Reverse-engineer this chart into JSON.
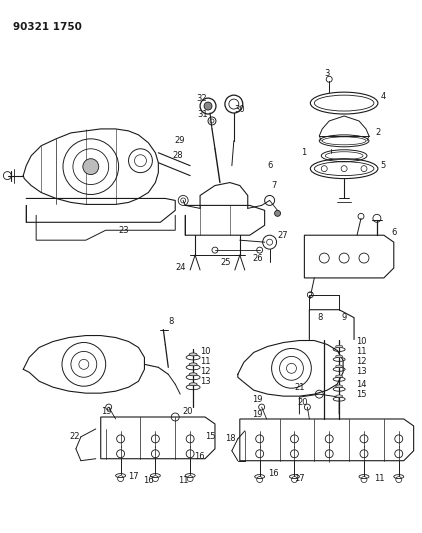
{
  "title": "90321 1750",
  "bg": "#ffffff",
  "lc": "#1a1a1a",
  "figsize": [
    4.22,
    5.33
  ],
  "dpi": 100
}
